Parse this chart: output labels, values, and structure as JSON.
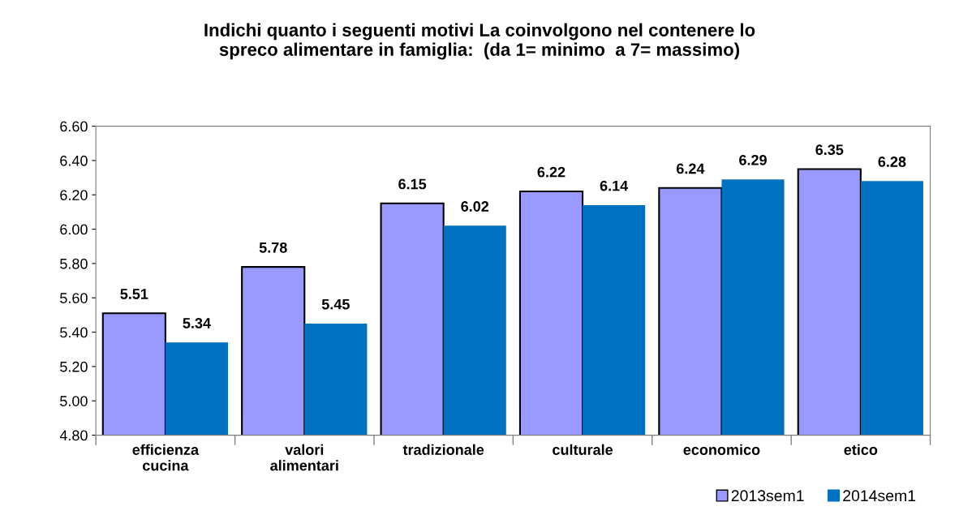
{
  "chart_data": {
    "type": "bar",
    "title": "Indichi quanto i seguenti motivi La coinvolgono nel contenere lo\nspreco alimentare in famiglia:  (da 1= minimo  a 7= massimo)",
    "categories": [
      "efficienza\ncucina",
      "valori\nalimentari",
      "tradizionale",
      "culturale",
      "economico",
      "etico"
    ],
    "series": [
      {
        "name": "2013sem1",
        "color": "#9999ff",
        "values": [
          5.51,
          5.78,
          6.15,
          6.22,
          6.24,
          6.35
        ]
      },
      {
        "name": "2014sem1",
        "color": "#0070c0",
        "values": [
          5.34,
          5.45,
          6.02,
          6.14,
          6.29,
          6.28
        ]
      }
    ],
    "ylim": [
      4.8,
      6.6
    ],
    "yticks": [
      {
        "value": 4.8,
        "label": "4.80"
      },
      {
        "value": 5.0,
        "label": "5.00"
      },
      {
        "value": 5.2,
        "label": "5.20"
      },
      {
        "value": 5.4,
        "label": "5.40"
      },
      {
        "value": 5.6,
        "label": "5.60"
      },
      {
        "value": 5.8,
        "label": "5.80"
      },
      {
        "value": 6.0,
        "label": "6.00"
      },
      {
        "value": 6.2,
        "label": "6.20"
      },
      {
        "value": 6.4,
        "label": "6.40"
      },
      {
        "value": 6.6,
        "label": "6.60"
      }
    ],
    "data_labels": true,
    "grid": false,
    "legend": "bottom right"
  }
}
